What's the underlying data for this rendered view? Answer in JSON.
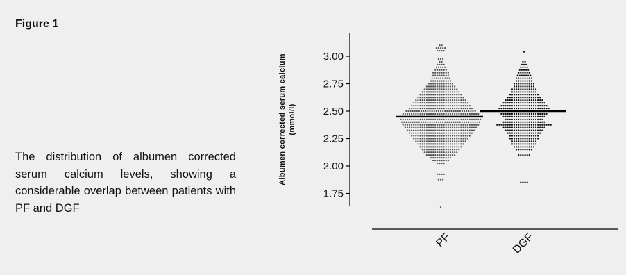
{
  "figure": {
    "title": "Figure 1",
    "caption": "The distribution of albumen corrected serum calcium levels, showing a considerable overlap between patients with PF and DGF"
  },
  "chart_data": {
    "type": "scatter",
    "subtype": "dot-plot",
    "ylabel_line1": "Albumen corrected serum calcium",
    "ylabel_line2": "(mmol/l)",
    "ylim": [
      1.6,
      3.15
    ],
    "yticks": [
      "1.75",
      "2.00",
      "2.25",
      "2.50",
      "2.75",
      "3.00"
    ],
    "categories": [
      "PF",
      "DGF"
    ],
    "medians": [
      2.45,
      2.5
    ],
    "grid": false,
    "colors": {
      "PF": "#555555",
      "DGF": "#111111",
      "median": "#000000"
    },
    "series": [
      {
        "category": "PF",
        "counts": [
          [
            1.625,
            1
          ],
          [
            1.875,
            3
          ],
          [
            1.925,
            4
          ],
          [
            2.025,
            4
          ],
          [
            2.05,
            8
          ],
          [
            2.075,
            10
          ],
          [
            2.1,
            14
          ],
          [
            2.125,
            16
          ],
          [
            2.15,
            18
          ],
          [
            2.175,
            20
          ],
          [
            2.2,
            22
          ],
          [
            2.225,
            24
          ],
          [
            2.25,
            26
          ],
          [
            2.275,
            28
          ],
          [
            2.3,
            30
          ],
          [
            2.325,
            32
          ],
          [
            2.35,
            34
          ],
          [
            2.375,
            36
          ],
          [
            2.4,
            37
          ],
          [
            2.425,
            38
          ],
          [
            2.45,
            38
          ],
          [
            2.475,
            36
          ],
          [
            2.5,
            33
          ],
          [
            2.525,
            30
          ],
          [
            2.55,
            28
          ],
          [
            2.575,
            26
          ],
          [
            2.6,
            24
          ],
          [
            2.625,
            22
          ],
          [
            2.65,
            20
          ],
          [
            2.675,
            18
          ],
          [
            2.7,
            16
          ],
          [
            2.725,
            14
          ],
          [
            2.75,
            12
          ],
          [
            2.775,
            10
          ],
          [
            2.8,
            9
          ],
          [
            2.825,
            8
          ],
          [
            2.85,
            8
          ],
          [
            2.875,
            6
          ],
          [
            2.9,
            5
          ],
          [
            2.925,
            4
          ],
          [
            2.95,
            2
          ],
          [
            2.975,
            3
          ],
          [
            3.05,
            4
          ],
          [
            3.075,
            5
          ],
          [
            3.1,
            2
          ]
        ]
      },
      {
        "category": "DGF",
        "counts": [
          [
            1.85,
            4
          ],
          [
            2.1,
            6
          ],
          [
            2.15,
            8
          ],
          [
            2.175,
            10
          ],
          [
            2.2,
            12
          ],
          [
            2.225,
            12
          ],
          [
            2.25,
            14
          ],
          [
            2.275,
            14
          ],
          [
            2.3,
            16
          ],
          [
            2.325,
            18
          ],
          [
            2.35,
            20
          ],
          [
            2.375,
            26
          ],
          [
            2.4,
            20
          ],
          [
            2.425,
            18
          ],
          [
            2.45,
            20
          ],
          [
            2.475,
            22
          ],
          [
            2.5,
            24
          ],
          [
            2.525,
            24
          ],
          [
            2.55,
            22
          ],
          [
            2.575,
            20
          ],
          [
            2.6,
            18
          ],
          [
            2.625,
            16
          ],
          [
            2.65,
            14
          ],
          [
            2.675,
            12
          ],
          [
            2.7,
            12
          ],
          [
            2.725,
            10
          ],
          [
            2.75,
            10
          ],
          [
            2.775,
            8
          ],
          [
            2.8,
            8
          ],
          [
            2.825,
            7
          ],
          [
            2.85,
            6
          ],
          [
            2.875,
            5
          ],
          [
            2.9,
            4
          ],
          [
            2.925,
            3
          ],
          [
            2.95,
            2
          ],
          [
            3.04,
            1
          ]
        ]
      }
    ]
  }
}
